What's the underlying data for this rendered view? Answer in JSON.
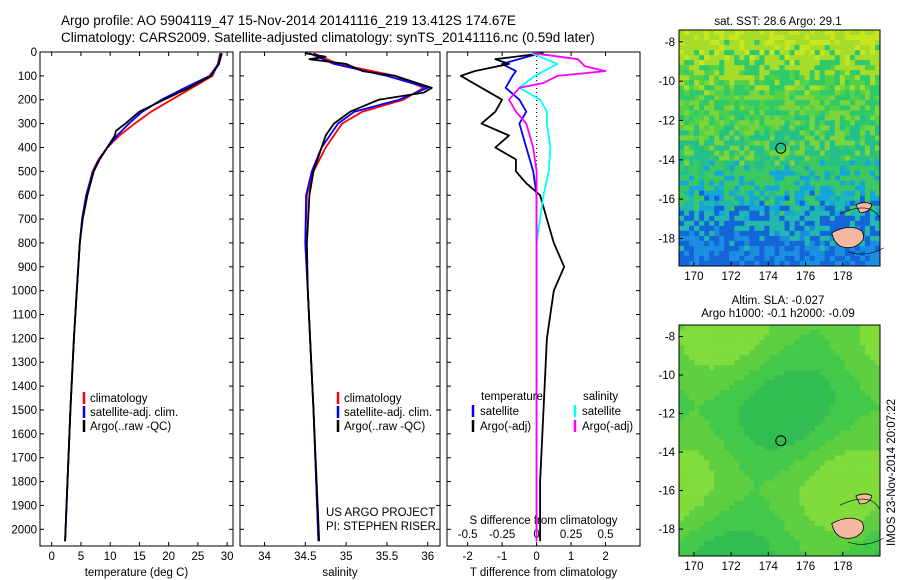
{
  "header": {
    "title_line1": "Argo profile: AO 5904119_47 15-Nov-2014 20141116_219 13.412S 174.67E",
    "title_line2": "Climatology: CARS2009. Satellite-adjusted climatology: synTS_20141116.nc (0.59d later)"
  },
  "colors": {
    "climatology": "#ff0000",
    "satellite": "#0000ff",
    "argo": "#000000",
    "sal_sat": "#00ffff",
    "sal_argo": "#ff00ff"
  },
  "project_note": {
    "line1": "US ARGO PROJECT",
    "line2": "PI: STEPHEN RISER"
  },
  "footer_stamp": "IMOS 23-Nov-2014 20:07:22",
  "maps": {
    "sst_title": "sat. SST: 28.6 Argo: 29.1",
    "sla_title_line1": "Altim. SLA: -0.027",
    "sla_title_line2": "Argo h1000: -0.1 h2000: -0.09",
    "lon_ticks": [
      "170",
      "172",
      "174",
      "176",
      "178"
    ],
    "lat_ticks": [
      "-8",
      "-10",
      "-12",
      "-14",
      "-16",
      "-18"
    ],
    "float_marker": "circle"
  },
  "chart_data": [
    {
      "type": "line",
      "id": "temperature",
      "xlabel": "temperature (deg C)",
      "xlim": [
        -2,
        31
      ],
      "xticks": [
        0,
        5,
        10,
        15,
        20,
        25,
        30
      ],
      "ylim": [
        2070,
        0
      ],
      "yticks": [
        0,
        100,
        200,
        300,
        400,
        500,
        600,
        700,
        800,
        900,
        1000,
        1100,
        1200,
        1300,
        1400,
        1500,
        1600,
        1700,
        1800,
        1900,
        2000
      ],
      "legend": [
        "climatology",
        "satellite-adj. clim.",
        "Argo(..raw -QC)"
      ],
      "series": [
        {
          "name": "climatology",
          "color": "#ff0000",
          "depth": [
            5,
            50,
            100,
            150,
            200,
            250,
            300,
            350,
            400,
            450,
            500,
            600,
            700,
            800,
            1000,
            1200,
            1500,
            1800,
            2050
          ],
          "values": [
            28.8,
            28.4,
            27.5,
            24.0,
            20.5,
            17.0,
            14.2,
            11.6,
            9.5,
            8.0,
            7.0,
            5.9,
            5.2,
            4.8,
            4.3,
            3.8,
            3.2,
            2.7,
            2.3
          ]
        },
        {
          "name": "satellite-adj. clim.",
          "color": "#0000ff",
          "depth": [
            5,
            50,
            100,
            150,
            200,
            250,
            300,
            350,
            400,
            450,
            500,
            600,
            700,
            800,
            1000,
            1200,
            1500,
            1800,
            2050
          ],
          "values": [
            28.9,
            28.5,
            27.0,
            22.8,
            18.8,
            15.5,
            13.2,
            11.2,
            9.5,
            8.1,
            7.1,
            5.9,
            5.2,
            4.8,
            4.3,
            3.8,
            3.2,
            2.7,
            2.3
          ]
        },
        {
          "name": "Argo(..raw -QC)",
          "color": "#000000",
          "depth": [
            5,
            50,
            100,
            150,
            200,
            250,
            300,
            330,
            350,
            400,
            450,
            500,
            600,
            700,
            800,
            1000,
            1200,
            1500,
            1800,
            2050
          ],
          "values": [
            29.1,
            28.6,
            27.2,
            23.5,
            19.2,
            15.0,
            12.6,
            11.0,
            10.8,
            9.5,
            8.2,
            7.2,
            6.1,
            5.3,
            4.8,
            4.3,
            3.8,
            3.2,
            2.7,
            2.3
          ]
        }
      ]
    },
    {
      "type": "line",
      "id": "salinity",
      "xlabel": "salinity",
      "xlim": [
        33.7,
        36.15
      ],
      "xticks": [
        34,
        34.5,
        35,
        35.5,
        36
      ],
      "ylim": [
        2070,
        0
      ],
      "legend": [
        "climatology",
        "satellite-adj. clim.",
        "Argo(..raw -QC)"
      ],
      "series": [
        {
          "name": "climatology",
          "color": "#ff0000",
          "depth": [
            5,
            50,
            100,
            150,
            200,
            250,
            300,
            400,
            500,
            600,
            800,
            1000,
            1500,
            2050
          ],
          "values": [
            34.6,
            34.9,
            35.6,
            35.95,
            35.7,
            35.2,
            34.95,
            34.75,
            34.6,
            34.52,
            34.5,
            34.53,
            34.6,
            34.66
          ]
        },
        {
          "name": "satellite-adj. clim.",
          "color": "#0000ff",
          "depth": [
            5,
            50,
            100,
            150,
            200,
            250,
            300,
            400,
            500,
            600,
            800,
            1000,
            1500,
            2050
          ],
          "values": [
            34.55,
            34.85,
            35.5,
            36.0,
            35.65,
            35.1,
            34.9,
            34.7,
            34.58,
            34.51,
            34.5,
            34.53,
            34.6,
            34.66
          ]
        },
        {
          "name": "Argo(..raw -QC)",
          "color": "#000000",
          "depth": [
            5,
            20,
            30,
            50,
            80,
            100,
            150,
            170,
            200,
            250,
            300,
            350,
            400,
            500,
            600,
            800,
            1000,
            1500,
            2050
          ],
          "values": [
            34.5,
            34.75,
            34.55,
            35.0,
            35.2,
            35.6,
            36.05,
            35.95,
            35.4,
            35.05,
            34.85,
            34.75,
            34.7,
            34.6,
            34.55,
            34.52,
            34.53,
            34.6,
            34.67
          ]
        }
      ]
    },
    {
      "type": "line",
      "id": "difference",
      "xlabel": "T difference from climatology",
      "xlabel_top": "S difference from climatology",
      "xlim": [
        -2.6,
        3.0
      ],
      "xticks": [
        -2,
        -1,
        0,
        1,
        2
      ],
      "xticks_salinity": [
        "-0.5",
        "-0.25",
        "0",
        "0.25",
        "0.5"
      ],
      "ylim": [
        2070,
        0
      ],
      "legend_titles": [
        "temperature",
        "salinity"
      ],
      "legend": [
        "satellite",
        "Argo(-adj)",
        "satellite",
        "Argo(-adj)"
      ],
      "series": [
        {
          "name": "satellite",
          "color": "#0000ff",
          "depth": [
            5,
            50,
            80,
            100,
            150,
            200,
            250,
            300,
            400,
            500,
            600,
            700,
            800,
            1000,
            1500,
            2050
          ],
          "values": [
            0.1,
            -1.0,
            -0.6,
            -0.7,
            -0.9,
            -0.5,
            -0.3,
            -0.5,
            -0.3,
            -0.1,
            0.0,
            0.0,
            0.0,
            0.0,
            0.0,
            0.0
          ]
        },
        {
          "name": "Argo(-adj)",
          "color": "#000000",
          "depth": [
            5,
            30,
            50,
            80,
            100,
            150,
            200,
            250,
            300,
            350,
            400,
            450,
            500,
            550,
            600,
            700,
            800,
            900,
            1000,
            1200,
            1500,
            1800,
            2050
          ],
          "values": [
            0.2,
            -1.2,
            -0.8,
            -1.8,
            -2.2,
            -1.6,
            -1.0,
            -1.2,
            -1.6,
            -0.8,
            -1.2,
            -0.6,
            -0.6,
            -0.3,
            0.1,
            0.3,
            0.5,
            0.8,
            0.5,
            0.3,
            0.2,
            0.1,
            0.1
          ]
        },
        {
          "name": "satellite",
          "color": "#00ffff",
          "depth": [
            5,
            50,
            100,
            150,
            200,
            250,
            300,
            400,
            500,
            600,
            800,
            1000,
            1500,
            2050
          ],
          "values": [
            -0.15,
            0.6,
            -0.05,
            -0.5,
            0.1,
            0.3,
            0.3,
            0.4,
            0.35,
            0.2,
            0.0,
            0.0,
            0.0,
            0.0
          ]
        },
        {
          "name": "Argo(-adj)",
          "color": "#ff00ff",
          "depth": [
            5,
            30,
            60,
            80,
            100,
            130,
            150,
            200,
            250,
            300,
            400,
            500,
            600,
            800,
            1000,
            1500,
            2050
          ],
          "values": [
            -0.1,
            1.2,
            1.4,
            2.0,
            0.6,
            0.2,
            -0.5,
            -0.8,
            -0.6,
            -0.3,
            -0.1,
            0.0,
            0.0,
            0.0,
            0.0,
            0.0,
            0.0
          ]
        }
      ]
    }
  ]
}
